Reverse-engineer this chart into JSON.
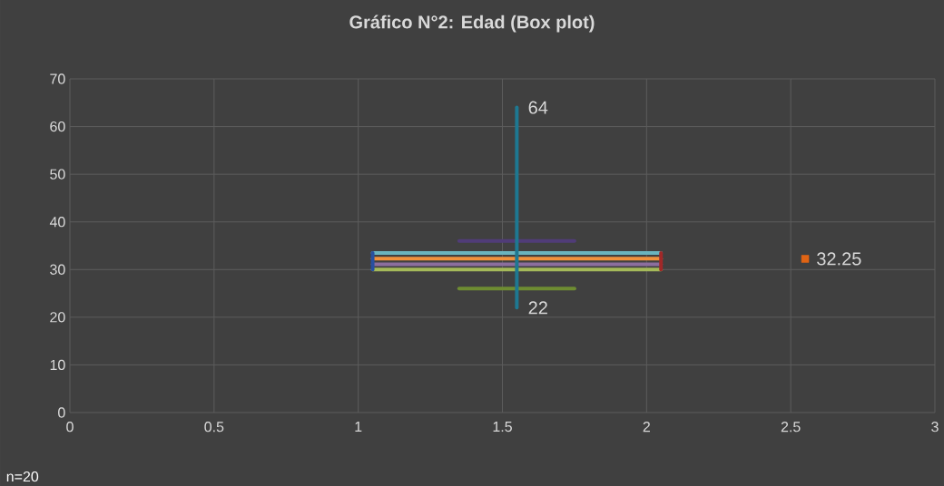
{
  "chart_data": {
    "type": "line",
    "title": "Gráfico N°2: Edad (Box plot)",
    "xlim": [
      0,
      3
    ],
    "xticks": [
      0,
      0.5,
      1,
      1.5,
      2,
      2.5,
      3
    ],
    "ylim": [
      0,
      70
    ],
    "yticks": [
      0,
      10,
      20,
      30,
      40,
      50,
      60,
      70
    ],
    "grid": true,
    "line_style": "solid",
    "series": [
      {
        "color": "#6ab4be",
        "x": [
          1.05,
          2.05
        ],
        "values": [
          33.5,
          33.5
        ]
      },
      {
        "color": "#f0913c",
        "x": [
          1.05,
          2.05
        ],
        "values": [
          32.3,
          32.3
        ]
      },
      {
        "color": "#8c6e9e",
        "x": [
          1.05,
          2.05
        ],
        "values": [
          31.1,
          31.1
        ]
      },
      {
        "color": "#a5b95a",
        "x": [
          1.05,
          2.05
        ],
        "values": [
          30,
          30
        ]
      },
      {
        "color": "#503c78",
        "x": [
          1.35,
          1.75
        ],
        "values": [
          36,
          36
        ]
      },
      {
        "color": "#6e8c32",
        "x": [
          1.35,
          1.75
        ],
        "values": [
          26,
          26
        ]
      },
      {
        "color": "#2850a0",
        "x": [
          1.05,
          1.05
        ],
        "values": [
          30,
          33.5
        ]
      },
      {
        "color": "#a02828",
        "x": [
          2.05,
          2.05
        ],
        "values": [
          30,
          33.5
        ]
      },
      {
        "color": "#1e7891",
        "x": [
          1.55,
          1.55
        ],
        "values": [
          22,
          64
        ],
        "value_labels": [
          "22",
          "64"
        ]
      },
      {
        "type": "scatter",
        "marker": "square",
        "color": "#e06414",
        "x": [
          2.55
        ],
        "values": [
          32.25
        ],
        "value_labels": [
          "32.25"
        ]
      }
    ],
    "annotations": [
      "n=20"
    ]
  }
}
